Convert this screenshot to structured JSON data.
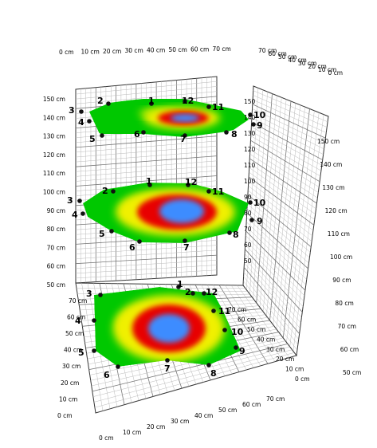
{
  "chart_data": {
    "type": "heatmap",
    "title": "",
    "xlabel": "",
    "ylabel": "",
    "zlabel": "",
    "grid": true,
    "height_axis": {
      "min": 50,
      "max": 150,
      "step": 10,
      "labels": [
        "50 cm",
        "60 cm",
        "70 cm",
        "80 cm",
        "90 cm",
        "100 cm",
        "110 cm",
        "120 cm",
        "130 cm",
        "140 cm",
        "150 cm"
      ]
    },
    "width_axis_labels": [
      "0 cm",
      "10 cm",
      "20 cm",
      "30 cm",
      "40 cm",
      "50 cm",
      "60 cm",
      "70 cm"
    ],
    "depth_axis_labels": [
      "0 cm",
      "10 cm",
      "20 cm",
      "30 cm",
      "40 cm",
      "50 cm",
      "60 cm",
      "70 cm"
    ],
    "floor_left_labels": [
      "0 cm",
      "10 cm",
      "20 cm",
      "30 cm",
      "40 cm",
      "50 cm",
      "60 cm",
      "70 cm"
    ],
    "floor_right_labels": [
      "0 cm",
      "10 cm",
      "20 cm",
      "30 cm",
      "40 cm",
      "50 cm",
      "60 cm",
      "70 cm"
    ],
    "wall_right_labels": [
      "50 cm",
      "60 cm",
      "70 cm",
      "80 cm",
      "90 cm",
      "100 cm",
      "110 cm",
      "120 cm",
      "130 cm",
      "140 cm",
      "150 cm"
    ],
    "back_wall_labels": [
      "50",
      "60",
      "70",
      "80",
      "90",
      "100",
      "110",
      "120",
      "130",
      "140",
      "150"
    ],
    "top_depth_labels": [
      "0 cm",
      "10 cm",
      "20 cm",
      "30 cm",
      "40 cm",
      "50 cm",
      "60 cm",
      "70 cm"
    ],
    "layers": [
      {
        "height": 140,
        "markers": [
          "1",
          "2",
          "3",
          "4",
          "5",
          "6",
          "7",
          "8",
          "9",
          "10",
          "11",
          "12"
        ],
        "hotspot": {
          "intensity": 0.8,
          "extent": "small"
        }
      },
      {
        "height": 95,
        "markers": [
          "1",
          "2",
          "3",
          "4",
          "5",
          "6",
          "7",
          "8",
          "9",
          "10",
          "11",
          "12"
        ],
        "hotspot": {
          "intensity": 1.0,
          "extent": "medium"
        }
      },
      {
        "height": 55,
        "markers": [
          "1",
          "2",
          "3",
          "4",
          "5",
          "6",
          "7",
          "8",
          "9",
          "10",
          "11",
          "12"
        ],
        "hotspot": {
          "intensity": 1.0,
          "extent": "large"
        }
      }
    ],
    "colors": {
      "low": "#00c800",
      "mid1": "#f0f000",
      "mid2": "#e80000",
      "high": "#3c8cff"
    }
  }
}
